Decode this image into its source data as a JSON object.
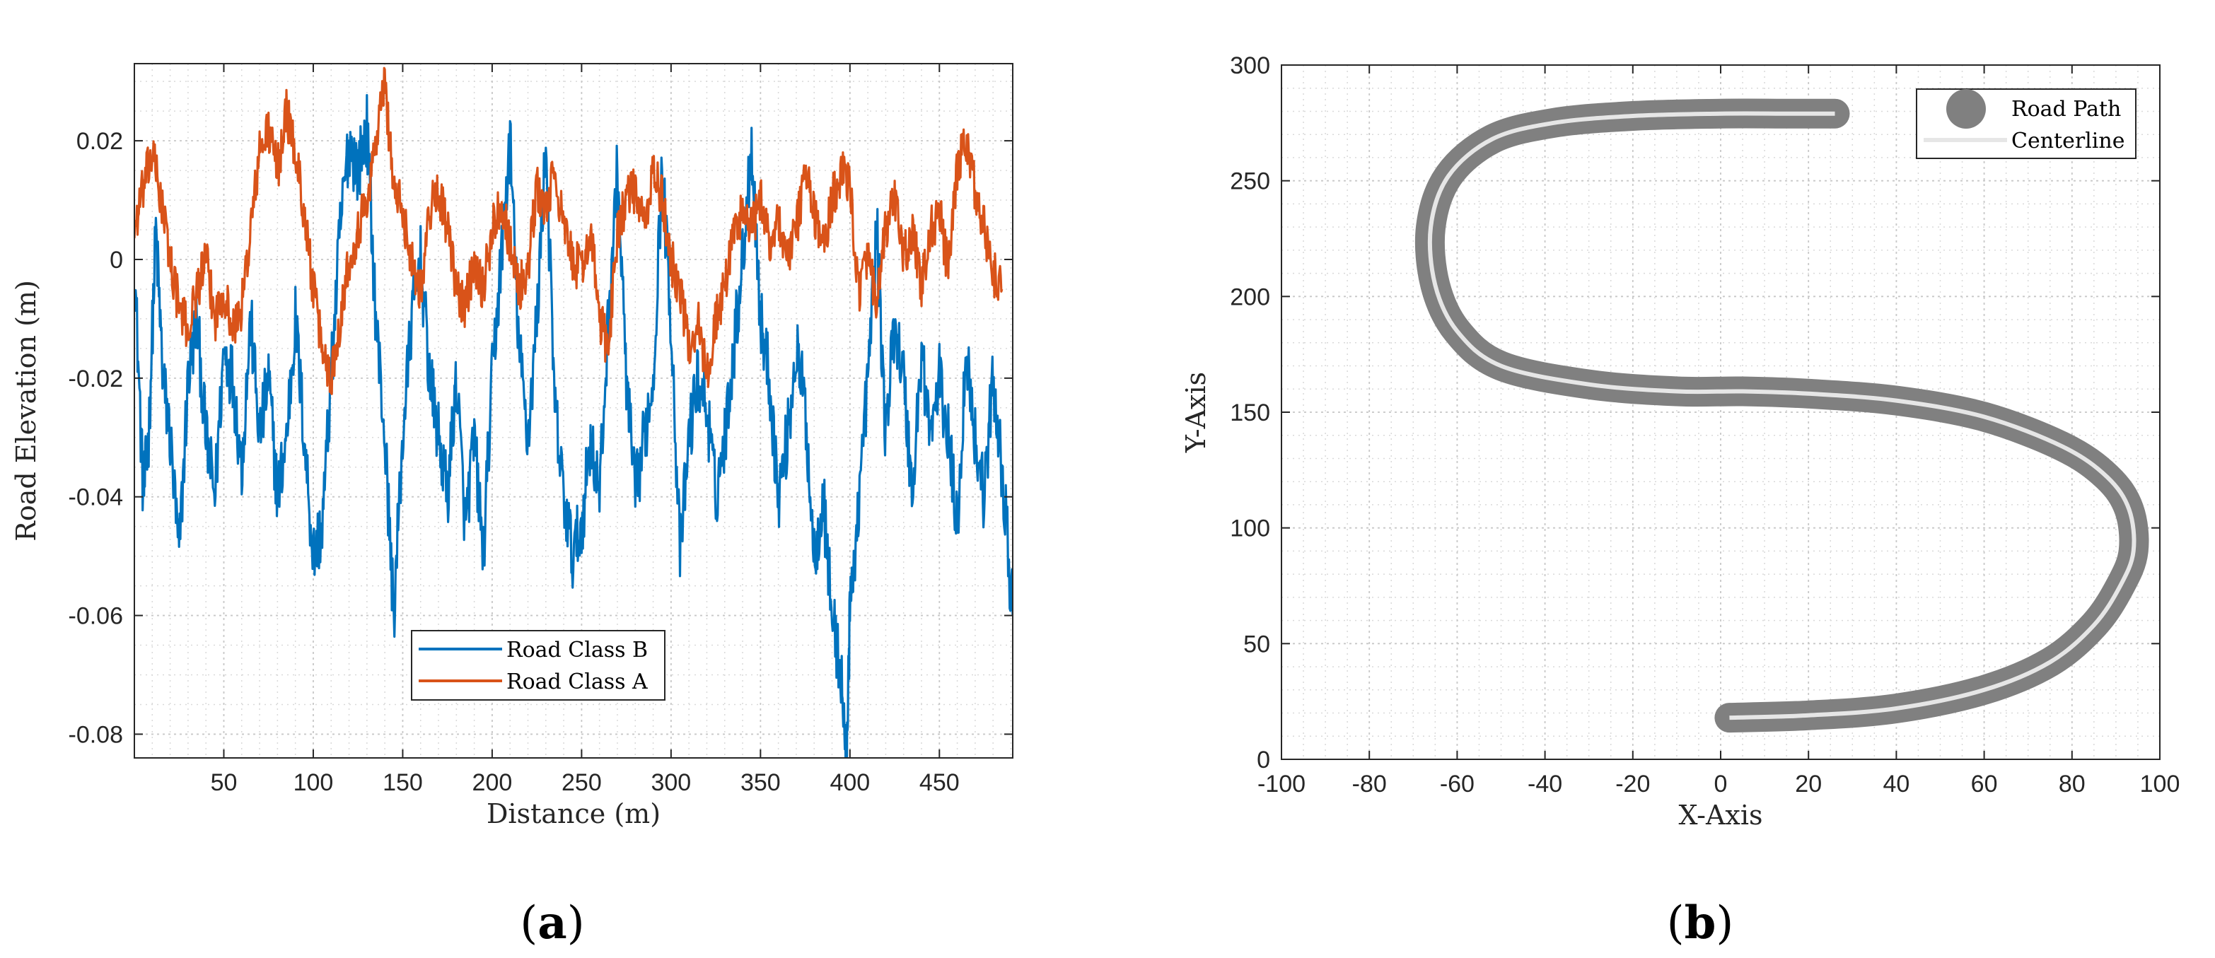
{
  "panels": {
    "a": {
      "label_open": "(",
      "label_letter": "a",
      "label_close": ")"
    },
    "b": {
      "label_open": "(",
      "label_letter": "b",
      "label_close": ")"
    }
  },
  "colors": {
    "road_class_b": "#0072BD",
    "road_class_a": "#D95319",
    "road_path": "#808080",
    "centerline": "#E6E6E6",
    "grid": "#D9D9D9",
    "axis": "#262626"
  },
  "chart_data": [
    {
      "type": "line",
      "xlabel": "Distance (m)",
      "ylabel": "Road Elevation (m)",
      "xlim": [
        0,
        491
      ],
      "ylim": [
        -0.084,
        0.033
      ],
      "xticks": [
        50,
        100,
        150,
        200,
        250,
        300,
        350,
        400,
        450
      ],
      "yticks": [
        -0.08,
        -0.06,
        -0.04,
        -0.02,
        0,
        0.02
      ],
      "ytick_labels": [
        "-0.08",
        "-0.06",
        "-0.04",
        "-0.02",
        "0",
        "0.02"
      ],
      "grid": "on (major + minor, dotted)",
      "legend_position": "lower center",
      "series": [
        {
          "name": "Road Class B",
          "color": "#0072BD",
          "x": [
            0,
            5,
            8,
            12,
            16,
            20,
            25,
            30,
            35,
            40,
            45,
            50,
            55,
            60,
            65,
            70,
            75,
            80,
            85,
            90,
            95,
            100,
            105,
            110,
            115,
            120,
            125,
            130,
            135,
            140,
            145,
            150,
            155,
            160,
            165,
            170,
            175,
            180,
            185,
            190,
            195,
            200,
            205,
            210,
            215,
            220,
            225,
            230,
            235,
            240,
            245,
            250,
            255,
            260,
            265,
            270,
            275,
            280,
            285,
            290,
            295,
            300,
            305,
            310,
            315,
            320,
            325,
            330,
            335,
            340,
            345,
            350,
            355,
            360,
            365,
            370,
            375,
            380,
            385,
            390,
            395,
            398,
            400,
            405,
            410,
            415,
            420,
            425,
            430,
            435,
            440,
            445,
            450,
            455,
            460,
            465,
            470,
            475,
            480,
            485,
            491
          ],
          "y": [
            0.0,
            -0.04,
            -0.03,
            0.005,
            -0.02,
            -0.03,
            -0.05,
            -0.02,
            -0.01,
            -0.03,
            -0.04,
            -0.015,
            -0.02,
            -0.035,
            -0.01,
            -0.03,
            -0.02,
            -0.04,
            -0.03,
            -0.01,
            -0.03,
            -0.05,
            -0.045,
            -0.02,
            0.005,
            0.02,
            0.015,
            0.022,
            -0.01,
            -0.03,
            -0.06,
            -0.03,
            -0.01,
            0.0,
            -0.02,
            -0.03,
            -0.04,
            -0.02,
            -0.045,
            -0.03,
            -0.05,
            -0.02,
            0.0,
            0.02,
            -0.015,
            -0.03,
            -0.01,
            0.02,
            -0.025,
            -0.04,
            -0.05,
            -0.045,
            -0.03,
            -0.04,
            -0.01,
            0.015,
            -0.02,
            -0.04,
            -0.03,
            -0.02,
            0.015,
            -0.01,
            -0.05,
            -0.03,
            -0.02,
            -0.025,
            -0.04,
            -0.03,
            -0.015,
            0.0,
            0.02,
            -0.01,
            -0.02,
            -0.04,
            -0.03,
            -0.015,
            -0.025,
            -0.05,
            -0.04,
            -0.06,
            -0.07,
            -0.084,
            -0.06,
            -0.04,
            -0.02,
            0.005,
            -0.03,
            -0.01,
            -0.02,
            -0.04,
            -0.015,
            -0.03,
            -0.02,
            -0.03,
            -0.045,
            -0.015,
            -0.03,
            -0.04,
            -0.02,
            -0.035,
            -0.06
          ]
        },
        {
          "name": "Road Class A",
          "color": "#D95319",
          "x": [
            0,
            5,
            10,
            15,
            20,
            25,
            30,
            35,
            40,
            45,
            50,
            55,
            60,
            65,
            70,
            75,
            80,
            85,
            90,
            95,
            100,
            105,
            110,
            115,
            120,
            125,
            130,
            135,
            140,
            145,
            150,
            155,
            160,
            165,
            170,
            175,
            180,
            185,
            190,
            195,
            200,
            205,
            210,
            215,
            220,
            225,
            230,
            235,
            240,
            245,
            250,
            255,
            260,
            265,
            270,
            275,
            280,
            285,
            290,
            295,
            300,
            305,
            310,
            315,
            320,
            325,
            330,
            335,
            340,
            345,
            350,
            355,
            360,
            365,
            370,
            375,
            380,
            385,
            390,
            395,
            400,
            405,
            410,
            415,
            420,
            425,
            430,
            435,
            440,
            445,
            450,
            455,
            460,
            465,
            470,
            475,
            480,
            485
          ],
          "y": [
            0.005,
            0.012,
            0.018,
            0.01,
            0.0,
            -0.008,
            -0.012,
            -0.005,
            0.0,
            -0.01,
            -0.005,
            -0.012,
            -0.008,
            0.005,
            0.018,
            0.022,
            0.015,
            0.025,
            0.018,
            0.008,
            -0.005,
            -0.015,
            -0.02,
            -0.01,
            0.0,
            0.005,
            0.01,
            0.02,
            0.03,
            0.012,
            0.008,
            0.0,
            -0.005,
            0.008,
            0.012,
            0.005,
            -0.005,
            -0.008,
            0.0,
            -0.005,
            0.005,
            0.01,
            0.003,
            -0.005,
            -0.002,
            0.012,
            0.008,
            0.015,
            0.005,
            0.0,
            -0.002,
            0.005,
            -0.01,
            -0.015,
            0.005,
            0.01,
            0.012,
            0.005,
            0.015,
            0.01,
            0.0,
            -0.005,
            -0.015,
            -0.01,
            -0.02,
            -0.01,
            -0.005,
            0.005,
            0.008,
            0.005,
            0.01,
            0.003,
            0.007,
            0.0,
            0.005,
            0.015,
            0.008,
            0.002,
            0.01,
            0.015,
            0.012,
            -0.005,
            0.0,
            -0.008,
            0.005,
            0.01,
            0.0,
            0.005,
            -0.005,
            0.005,
            0.008,
            -0.002,
            0.015,
            0.02,
            0.012,
            0.005,
            -0.002,
            -0.005
          ]
        }
      ]
    },
    {
      "type": "line",
      "xlabel": "X-Axis",
      "ylabel": "Y-Axis",
      "xlim": [
        -100,
        100
      ],
      "ylim": [
        0,
        300
      ],
      "xticks": [
        -100,
        -80,
        -60,
        -40,
        -20,
        0,
        20,
        40,
        60,
        80,
        100
      ],
      "yticks": [
        0,
        50,
        100,
        150,
        200,
        250,
        300
      ],
      "grid": "on (major + minor, dotted)",
      "legend_position": "top-right",
      "series": [
        {
          "name": "Road Path",
          "color": "#808080",
          "x": [
            2,
            20,
            40,
            60,
            75,
            85,
            91,
            94,
            93,
            88,
            78,
            60,
            40,
            20,
            5,
            -10,
            -30,
            -50,
            -60,
            -65,
            -66,
            -62,
            -52,
            -38,
            -20,
            0,
            15,
            26
          ],
          "y": [
            18,
            19,
            22,
            30,
            42,
            58,
            75,
            90,
            108,
            122,
            135,
            148,
            155,
            158,
            159,
            159,
            162,
            170,
            185,
            205,
            230,
            252,
            268,
            275,
            278,
            279,
            279,
            279
          ]
        },
        {
          "name": "Centerline",
          "color": "#E6E6E6",
          "x": [
            2,
            20,
            40,
            60,
            75,
            85,
            91,
            94,
            93,
            88,
            78,
            60,
            40,
            20,
            5,
            -10,
            -30,
            -50,
            -60,
            -65,
            -66,
            -62,
            -52,
            -38,
            -20,
            0,
            15,
            26
          ],
          "y": [
            18,
            19,
            22,
            30,
            42,
            58,
            75,
            90,
            108,
            122,
            135,
            148,
            155,
            158,
            159,
            159,
            162,
            170,
            185,
            205,
            230,
            252,
            268,
            275,
            278,
            279,
            279,
            279
          ]
        }
      ]
    }
  ]
}
